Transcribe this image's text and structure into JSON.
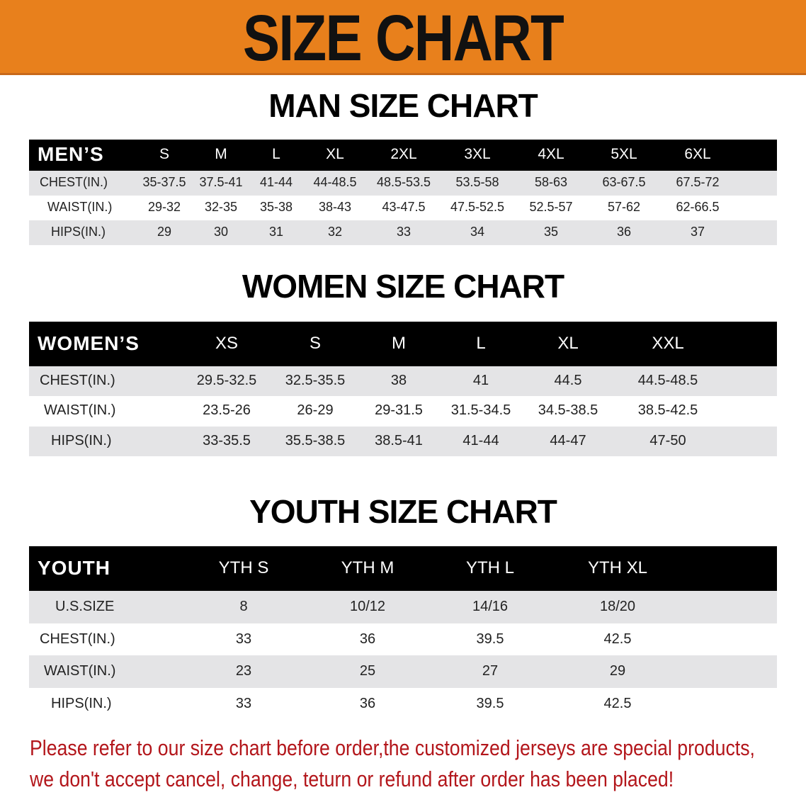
{
  "banner": {
    "title": "SIZE CHART",
    "color": "#e8801c"
  },
  "men": {
    "title": "MAN SIZE CHART",
    "header_label": "MEN’S",
    "sizes": [
      "S",
      "M",
      "L",
      "XL",
      "2XL",
      "3XL",
      "4XL",
      "5XL",
      "6XL"
    ],
    "rows": [
      {
        "label": "CHEST(IN.)",
        "values": [
          "35-37.5",
          "37.5-41",
          "41-44",
          "44-48.5",
          "48.5-53.5",
          "53.5-58",
          "58-63",
          "63-67.5",
          "67.5-72"
        ]
      },
      {
        "label": "WAIST(IN.)",
        "values": [
          "29-32",
          "32-35",
          "35-38",
          "38-43",
          "43-47.5",
          "47.5-52.5",
          "52.5-57",
          "57-62",
          "62-66.5"
        ]
      },
      {
        "label": "HIPS(IN.)",
        "values": [
          "29",
          "30",
          "31",
          "32",
          "33",
          "34",
          "35",
          "36",
          "37"
        ]
      }
    ]
  },
  "women": {
    "title": "WOMEN SIZE CHART",
    "header_label": "WOMEN’S",
    "sizes": [
      "XS",
      "S",
      "M",
      "L",
      "XL",
      "XXL"
    ],
    "rows": [
      {
        "label": "CHEST(IN.)",
        "values": [
          "29.5-32.5",
          "32.5-35.5",
          "38",
          "41",
          "44.5",
          "44.5-48.5"
        ]
      },
      {
        "label": "WAIST(IN.)",
        "values": [
          "23.5-26",
          "26-29",
          "29-31.5",
          "31.5-34.5",
          "34.5-38.5",
          "38.5-42.5"
        ]
      },
      {
        "label": "HIPS(IN.)",
        "values": [
          "33-35.5",
          "35.5-38.5",
          "38.5-41",
          "41-44",
          "44-47",
          "47-50"
        ]
      }
    ]
  },
  "youth": {
    "title": "YOUTH SIZE CHART",
    "header_label": "YOUTH",
    "sizes": [
      "YTH S",
      "YTH M",
      "YTH L",
      "YTH XL"
    ],
    "rows": [
      {
        "label": "U.S.SIZE",
        "values": [
          "8",
          "10/12",
          "14/16",
          "18/20"
        ]
      },
      {
        "label": "CHEST(IN.)",
        "values": [
          "33",
          "36",
          "39.5",
          "42.5"
        ]
      },
      {
        "label": "WAIST(IN.)",
        "values": [
          "23",
          "25",
          "27",
          "29"
        ]
      },
      {
        "label": "HIPS(IN.)",
        "values": [
          "33",
          "36",
          "39.5",
          "42.5"
        ]
      }
    ]
  },
  "notice": {
    "line1": "Please refer to our size chart before order,the customized jerseys are special products,",
    "line2": "we don't accept cancel, change, teturn or refund after order has been placed!",
    "color": "#b3161b"
  }
}
